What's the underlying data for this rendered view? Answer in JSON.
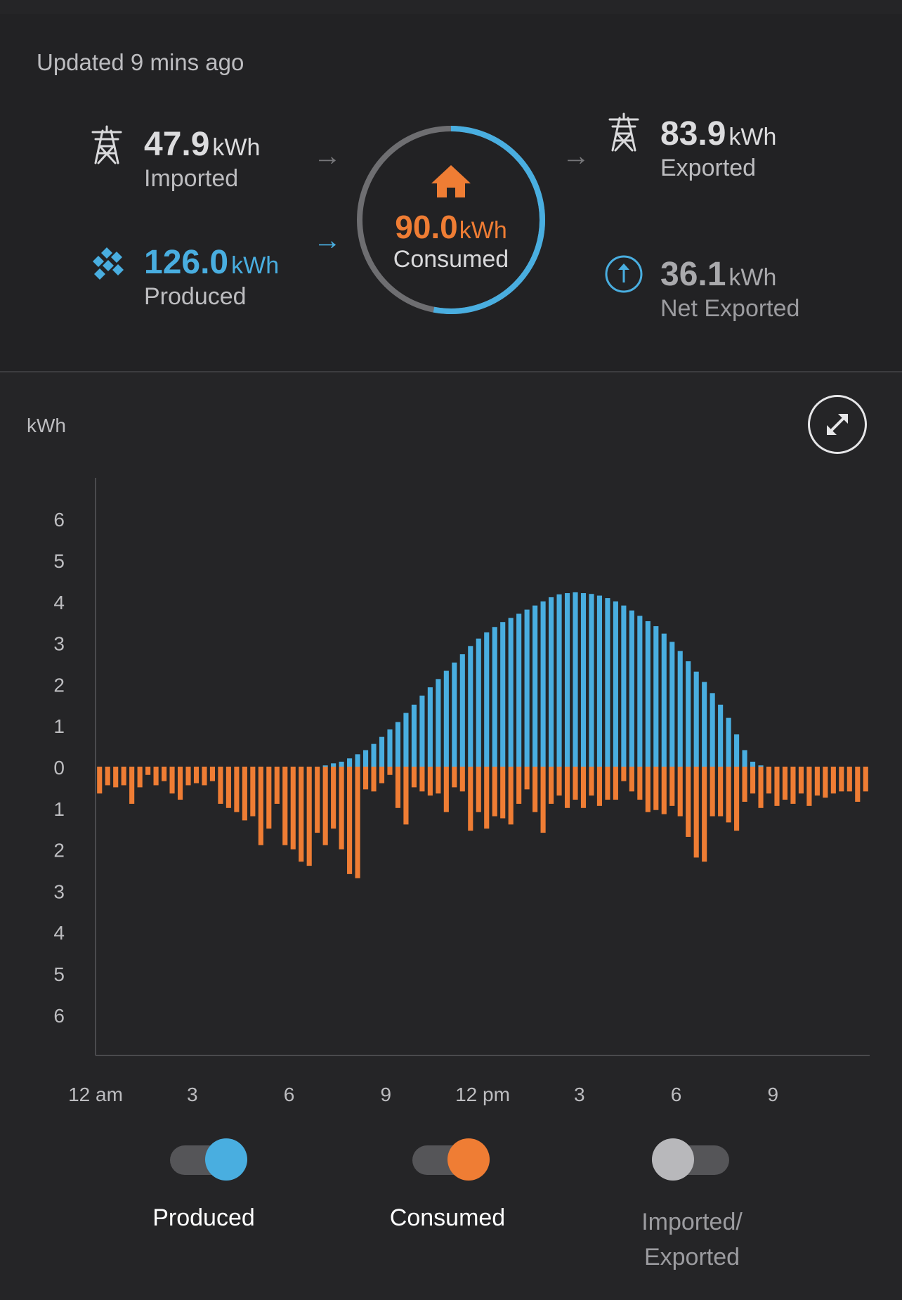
{
  "header": {
    "updated": "Updated 9 mins ago"
  },
  "summary": {
    "imported": {
      "value": "47.9",
      "unit": "kWh",
      "label": "Imported"
    },
    "produced": {
      "value": "126.0",
      "unit": "kWh",
      "label": "Produced"
    },
    "consumed": {
      "value": "90.0",
      "unit": "kWh",
      "label": "Consumed"
    },
    "exported": {
      "value": "83.9",
      "unit": "kWh",
      "label": "Exported"
    },
    "net_exported": {
      "value": "36.1",
      "unit": "kWh",
      "label": "Net Exported"
    },
    "ring_fraction_produced": 0.53
  },
  "colors": {
    "produced": "#49aee0",
    "consumed": "#ef7d34",
    "grid": "#77777a"
  },
  "chart_data": {
    "type": "bar",
    "ylabel": "kWh",
    "ylim": [
      -7,
      7
    ],
    "y_ticks": [
      6,
      5,
      4,
      3,
      2,
      1,
      0,
      1,
      2,
      3,
      4,
      5,
      6
    ],
    "x_ticks": [
      "12 am",
      "3",
      "6",
      "9",
      "12 pm",
      "3",
      "6",
      "9"
    ],
    "interval": "15 min",
    "series": [
      {
        "name": "Produced",
        "values": [
          0,
          0,
          0,
          0,
          0,
          0,
          0,
          0,
          0,
          0,
          0,
          0,
          0,
          0,
          0,
          0,
          0,
          0,
          0,
          0,
          0,
          0,
          0,
          0,
          0,
          0,
          0,
          0,
          0.03,
          0.08,
          0.12,
          0.2,
          0.3,
          0.4,
          0.55,
          0.72,
          0.9,
          1.08,
          1.3,
          1.5,
          1.72,
          1.92,
          2.12,
          2.32,
          2.52,
          2.72,
          2.92,
          3.1,
          3.25,
          3.38,
          3.5,
          3.6,
          3.7,
          3.8,
          3.9,
          4.0,
          4.1,
          4.17,
          4.2,
          4.22,
          4.2,
          4.18,
          4.14,
          4.08,
          4.0,
          3.9,
          3.78,
          3.65,
          3.52,
          3.4,
          3.22,
          3.02,
          2.8,
          2.55,
          2.3,
          2.05,
          1.78,
          1.5,
          1.18,
          0.78,
          0.4,
          0.12,
          0.03,
          0,
          0,
          0,
          0,
          0,
          0,
          0,
          0,
          0,
          0,
          0,
          0,
          0
        ]
      },
      {
        "name": "Consumed",
        "values": [
          0.65,
          0.45,
          0.5,
          0.45,
          0.9,
          0.5,
          0.2,
          0.45,
          0.35,
          0.65,
          0.8,
          0.45,
          0.4,
          0.45,
          0.35,
          0.9,
          1.0,
          1.1,
          1.3,
          1.2,
          1.9,
          1.5,
          0.9,
          1.9,
          2.0,
          2.3,
          2.4,
          1.6,
          1.9,
          1.5,
          2.0,
          2.6,
          2.7,
          0.55,
          0.6,
          0.4,
          0.2,
          1.0,
          1.4,
          0.5,
          0.6,
          0.7,
          0.65,
          1.1,
          0.5,
          0.6,
          1.55,
          1.1,
          1.5,
          1.2,
          1.25,
          1.4,
          0.9,
          0.55,
          1.1,
          1.6,
          0.9,
          0.7,
          1.0,
          0.8,
          1.0,
          0.7,
          0.95,
          0.8,
          0.8,
          0.35,
          0.6,
          0.8,
          1.1,
          1.05,
          1.15,
          0.95,
          1.2,
          1.7,
          2.2,
          2.3,
          1.2,
          1.2,
          1.35,
          1.55,
          0.85,
          0.65,
          1.0,
          0.65,
          0.95,
          0.8,
          0.9,
          0.65,
          0.95,
          0.7,
          0.75,
          0.65,
          0.6,
          0.6,
          0.85,
          0.6
        ]
      }
    ]
  },
  "legend": {
    "produced": {
      "label": "Produced",
      "on": true
    },
    "consumed": {
      "label": "Consumed",
      "on": true
    },
    "imported_exported": {
      "label_line1": "Imported/",
      "label_line2": "Exported",
      "on": false
    }
  }
}
